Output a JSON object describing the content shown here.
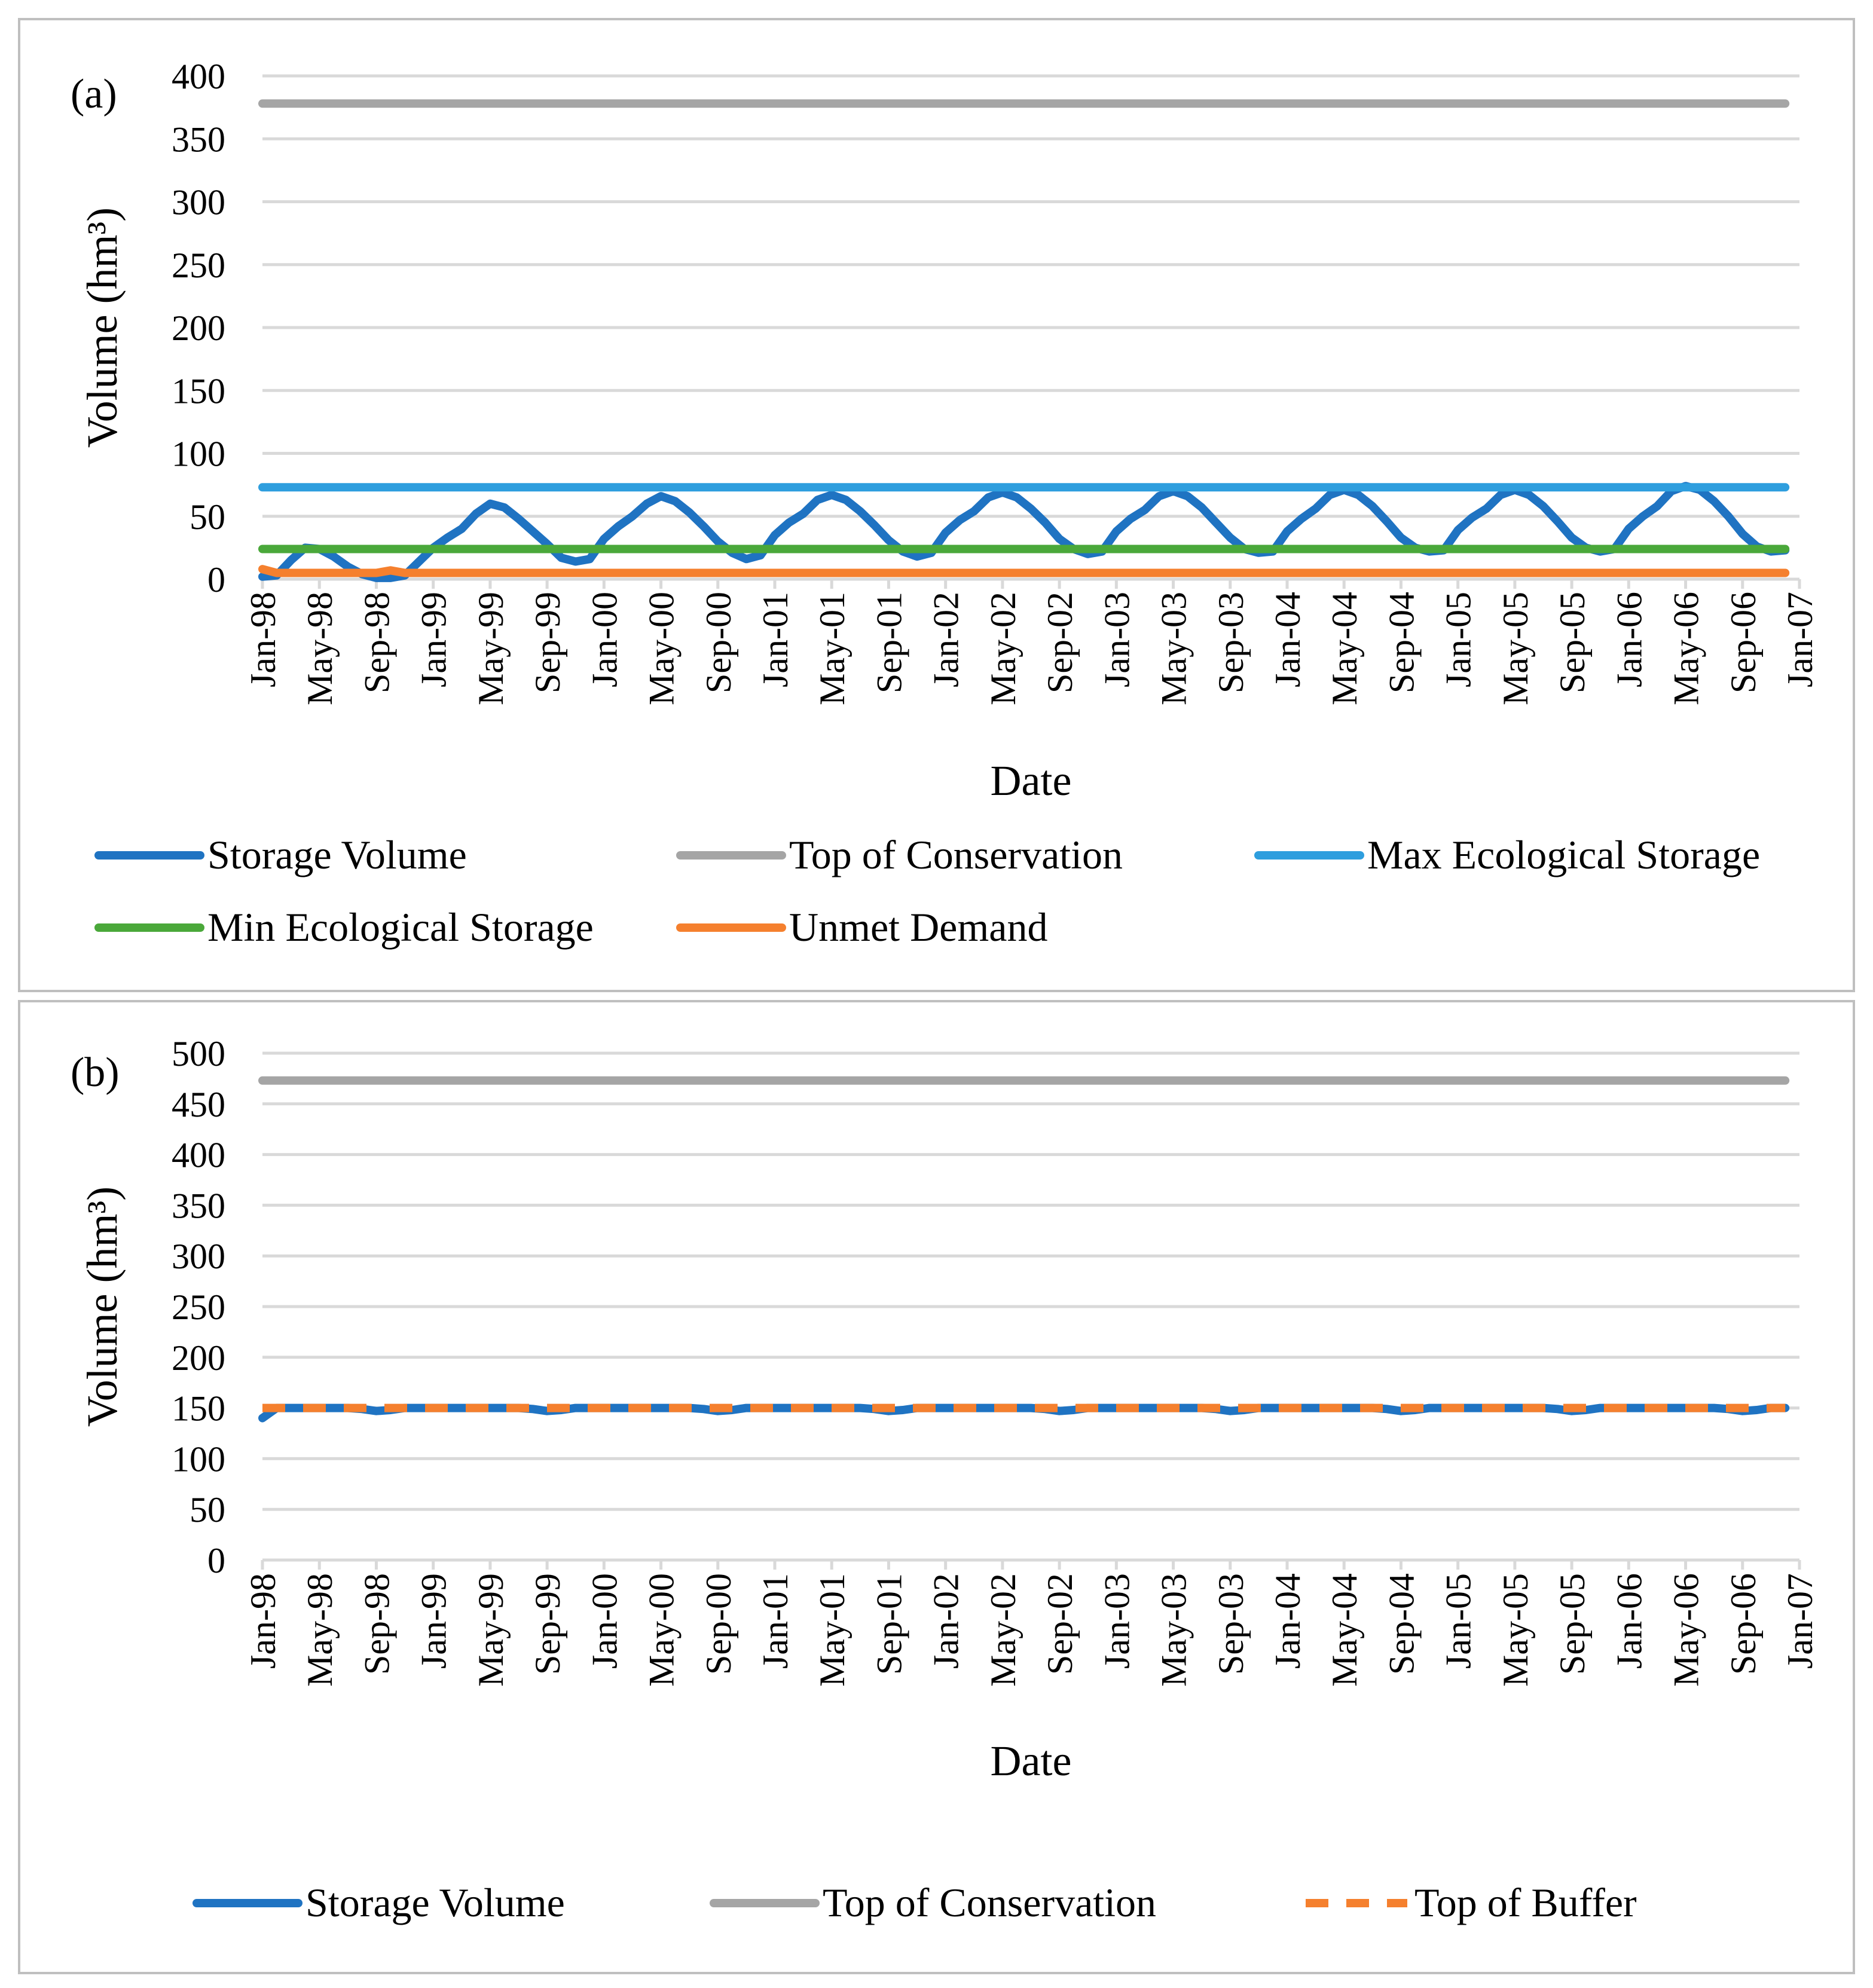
{
  "chart_data": [
    {
      "type": "line",
      "label": "(a)",
      "y_label": "Volume (hm³)",
      "x_label": "Date",
      "grid": true,
      "legend": "bottom",
      "categories": [
        "Jan-98",
        null,
        null,
        null,
        "May-98",
        null,
        null,
        null,
        "Sep-98",
        null,
        null,
        null,
        "Jan-99",
        null,
        null,
        null,
        "May-99",
        null,
        null,
        null,
        "Sep-99",
        null,
        null,
        null,
        "Jan-00",
        null,
        null,
        null,
        "May-00",
        null,
        null,
        null,
        "Sep-00",
        null,
        null,
        null,
        "Jan-01",
        null,
        null,
        null,
        "May-01",
        null,
        null,
        null,
        "Sep-01",
        null,
        null,
        null,
        "Jan-02",
        null,
        null,
        null,
        "May-02",
        null,
        null,
        null,
        "Sep-02",
        null,
        null,
        null,
        "Jan-03",
        null,
        null,
        null,
        "May-03",
        null,
        null,
        null,
        "Sep-03",
        null,
        null,
        null,
        "Jan-04",
        null,
        null,
        null,
        "May-04",
        null,
        null,
        null,
        "Sep-04",
        null,
        null,
        null,
        "Jan-05",
        null,
        null,
        null,
        "May-05",
        null,
        null,
        null,
        "Sep-05",
        null,
        null,
        null,
        "Jan-06",
        null,
        null,
        null,
        "May-06",
        null,
        null,
        null,
        "Sep-06",
        null,
        null,
        null,
        "Jan-07"
      ],
      "ylim": [
        0,
        400
      ],
      "yticks": [
        0,
        50,
        100,
        150,
        200,
        250,
        300,
        350,
        400
      ],
      "series": [
        {
          "name": "Storage Volume",
          "color": "#1f73c2",
          "values": [
            2,
            3,
            15,
            25,
            24,
            18,
            10,
            4,
            1,
            1,
            3,
            14,
            25,
            33,
            40,
            52,
            60,
            57,
            48,
            38,
            28,
            17,
            14,
            16,
            32,
            42,
            50,
            60,
            66,
            62,
            53,
            42,
            30,
            21,
            16,
            19,
            35,
            45,
            52,
            63,
            67,
            63,
            54,
            43,
            31,
            22,
            18,
            21,
            37,
            47,
            54,
            65,
            69,
            65,
            56,
            45,
            32,
            24,
            20,
            22,
            38,
            48,
            55,
            66,
            70,
            66,
            57,
            45,
            33,
            24,
            21,
            22,
            38,
            48,
            56,
            67,
            71,
            67,
            58,
            46,
            33,
            25,
            22,
            23,
            39,
            49,
            56,
            67,
            71,
            67,
            58,
            46,
            33,
            25,
            22,
            24,
            40,
            50,
            58,
            70,
            74,
            71,
            62,
            50,
            36,
            26,
            22,
            23,
            null
          ]
        },
        {
          "name": "Top of Conservation",
          "color": "#a5a5a5",
          "values": [
            378,
            378,
            378,
            378,
            378,
            378,
            378,
            378,
            378,
            378,
            378,
            378,
            378,
            378,
            378,
            378,
            378,
            378,
            378,
            378,
            378,
            378,
            378,
            378,
            378,
            378,
            378,
            378,
            378,
            378,
            378,
            378,
            378,
            378,
            378,
            378,
            378,
            378,
            378,
            378,
            378,
            378,
            378,
            378,
            378,
            378,
            378,
            378,
            378,
            378,
            378,
            378,
            378,
            378,
            378,
            378,
            378,
            378,
            378,
            378,
            378,
            378,
            378,
            378,
            378,
            378,
            378,
            378,
            378,
            378,
            378,
            378,
            378,
            378,
            378,
            378,
            378,
            378,
            378,
            378,
            378,
            378,
            378,
            378,
            378,
            378,
            378,
            378,
            378,
            378,
            378,
            378,
            378,
            378,
            378,
            378,
            378,
            378,
            378,
            378,
            378,
            378,
            378,
            378,
            378,
            378,
            378,
            378,
            null
          ]
        },
        {
          "name": "Max Ecological Storage",
          "color": "#2e9ede",
          "values": [
            73,
            73,
            73,
            73,
            73,
            73,
            73,
            73,
            73,
            73,
            73,
            73,
            73,
            73,
            73,
            73,
            73,
            73,
            73,
            73,
            73,
            73,
            73,
            73,
            73,
            73,
            73,
            73,
            73,
            73,
            73,
            73,
            73,
            73,
            73,
            73,
            73,
            73,
            73,
            73,
            73,
            73,
            73,
            73,
            73,
            73,
            73,
            73,
            73,
            73,
            73,
            73,
            73,
            73,
            73,
            73,
            73,
            73,
            73,
            73,
            73,
            73,
            73,
            73,
            73,
            73,
            73,
            73,
            73,
            73,
            73,
            73,
            73,
            73,
            73,
            73,
            73,
            73,
            73,
            73,
            73,
            73,
            73,
            73,
            73,
            73,
            73,
            73,
            73,
            73,
            73,
            73,
            73,
            73,
            73,
            73,
            73,
            73,
            73,
            73,
            73,
            73,
            73,
            73,
            73,
            73,
            73,
            73,
            null
          ]
        },
        {
          "name": "Min Ecological Storage",
          "color": "#4aa83a",
          "values": [
            24,
            24,
            24,
            24,
            24,
            24,
            24,
            24,
            24,
            24,
            24,
            24,
            24,
            24,
            24,
            24,
            24,
            24,
            24,
            24,
            24,
            24,
            24,
            24,
            24,
            24,
            24,
            24,
            24,
            24,
            24,
            24,
            24,
            24,
            24,
            24,
            24,
            24,
            24,
            24,
            24,
            24,
            24,
            24,
            24,
            24,
            24,
            24,
            24,
            24,
            24,
            24,
            24,
            24,
            24,
            24,
            24,
            24,
            24,
            24,
            24,
            24,
            24,
            24,
            24,
            24,
            24,
            24,
            24,
            24,
            24,
            24,
            24,
            24,
            24,
            24,
            24,
            24,
            24,
            24,
            24,
            24,
            24,
            24,
            24,
            24,
            24,
            24,
            24,
            24,
            24,
            24,
            24,
            24,
            24,
            24,
            24,
            24,
            24,
            24,
            24,
            24,
            24,
            24,
            24,
            24,
            24,
            24,
            null
          ]
        },
        {
          "name": "Unmet Demand",
          "color": "#f5802e",
          "values": [
            8,
            5,
            5,
            5,
            5,
            5,
            5,
            5,
            5,
            7,
            5,
            5,
            5,
            5,
            5,
            5,
            5,
            5,
            5,
            5,
            5,
            5,
            5,
            5,
            5,
            5,
            5,
            5,
            5,
            5,
            5,
            5,
            5,
            5,
            5,
            5,
            5,
            5,
            5,
            5,
            5,
            5,
            5,
            5,
            5,
            5,
            5,
            5,
            5,
            5,
            5,
            5,
            5,
            5,
            5,
            5,
            5,
            5,
            5,
            5,
            5,
            5,
            5,
            5,
            5,
            5,
            5,
            5,
            5,
            5,
            5,
            5,
            5,
            5,
            5,
            5,
            5,
            5,
            5,
            5,
            5,
            5,
            5,
            5,
            5,
            5,
            5,
            5,
            5,
            5,
            5,
            5,
            5,
            5,
            5,
            5,
            5,
            5,
            5,
            5,
            5,
            5,
            5,
            5,
            5,
            5,
            5,
            5,
            null
          ]
        }
      ]
    },
    {
      "type": "line",
      "label": "(b)",
      "y_label": "Volume (hm³)",
      "x_label": "Date",
      "grid": true,
      "legend": "bottom",
      "categories": [
        "Jan-98",
        null,
        null,
        null,
        "May-98",
        null,
        null,
        null,
        "Sep-98",
        null,
        null,
        null,
        "Jan-99",
        null,
        null,
        null,
        "May-99",
        null,
        null,
        null,
        "Sep-99",
        null,
        null,
        null,
        "Jan-00",
        null,
        null,
        null,
        "May-00",
        null,
        null,
        null,
        "Sep-00",
        null,
        null,
        null,
        "Jan-01",
        null,
        null,
        null,
        "May-01",
        null,
        null,
        null,
        "Sep-01",
        null,
        null,
        null,
        "Jan-02",
        null,
        null,
        null,
        "May-02",
        null,
        null,
        null,
        "Sep-02",
        null,
        null,
        null,
        "Jan-03",
        null,
        null,
        null,
        "May-03",
        null,
        null,
        null,
        "Sep-03",
        null,
        null,
        null,
        "Jan-04",
        null,
        null,
        null,
        "May-04",
        null,
        null,
        null,
        "Sep-04",
        null,
        null,
        null,
        "Jan-05",
        null,
        null,
        null,
        "May-05",
        null,
        null,
        null,
        "Sep-05",
        null,
        null,
        null,
        "Jan-06",
        null,
        null,
        null,
        "May-06",
        null,
        null,
        null,
        "Sep-06",
        null,
        null,
        null,
        "Jan-07"
      ],
      "ylim": [
        0,
        500
      ],
      "yticks": [
        0,
        50,
        100,
        150,
        200,
        250,
        300,
        350,
        400,
        450,
        500
      ],
      "series": [
        {
          "name": "Storage Volume",
          "color": "#1f73c2",
          "values": [
            140,
            150,
            150,
            150,
            150,
            150,
            150,
            149,
            147,
            148,
            150,
            150,
            150,
            150,
            150,
            150,
            150,
            150,
            150,
            149,
            147,
            148,
            150,
            150,
            150,
            150,
            150,
            150,
            150,
            150,
            150,
            149,
            147,
            148,
            150,
            150,
            150,
            150,
            150,
            150,
            150,
            150,
            150,
            149,
            147,
            148,
            150,
            150,
            150,
            150,
            150,
            150,
            150,
            150,
            150,
            149,
            147,
            148,
            150,
            150,
            150,
            150,
            150,
            150,
            150,
            150,
            150,
            149,
            147,
            148,
            150,
            150,
            150,
            150,
            150,
            150,
            150,
            150,
            150,
            149,
            147,
            148,
            150,
            150,
            150,
            150,
            150,
            150,
            150,
            150,
            150,
            149,
            147,
            148,
            150,
            150,
            150,
            150,
            150,
            150,
            150,
            150,
            150,
            149,
            147,
            148,
            150,
            150,
            null
          ]
        },
        {
          "name": "Top of Conservation",
          "color": "#a5a5a5",
          "values": [
            473,
            473,
            473,
            473,
            473,
            473,
            473,
            473,
            473,
            473,
            473,
            473,
            473,
            473,
            473,
            473,
            473,
            473,
            473,
            473,
            473,
            473,
            473,
            473,
            473,
            473,
            473,
            473,
            473,
            473,
            473,
            473,
            473,
            473,
            473,
            473,
            473,
            473,
            473,
            473,
            473,
            473,
            473,
            473,
            473,
            473,
            473,
            473,
            473,
            473,
            473,
            473,
            473,
            473,
            473,
            473,
            473,
            473,
            473,
            473,
            473,
            473,
            473,
            473,
            473,
            473,
            473,
            473,
            473,
            473,
            473,
            473,
            473,
            473,
            473,
            473,
            473,
            473,
            473,
            473,
            473,
            473,
            473,
            473,
            473,
            473,
            473,
            473,
            473,
            473,
            473,
            473,
            473,
            473,
            473,
            473,
            473,
            473,
            473,
            473,
            473,
            473,
            473,
            473,
            473,
            473,
            473,
            473,
            null
          ]
        },
        {
          "name": "Top of Buffer",
          "color": "#f5802e",
          "dashed": true,
          "values": [
            150,
            150,
            150,
            150,
            150,
            150,
            150,
            150,
            150,
            150,
            150,
            150,
            150,
            150,
            150,
            150,
            150,
            150,
            150,
            150,
            150,
            150,
            150,
            150,
            150,
            150,
            150,
            150,
            150,
            150,
            150,
            150,
            150,
            150,
            150,
            150,
            150,
            150,
            150,
            150,
            150,
            150,
            150,
            150,
            150,
            150,
            150,
            150,
            150,
            150,
            150,
            150,
            150,
            150,
            150,
            150,
            150,
            150,
            150,
            150,
            150,
            150,
            150,
            150,
            150,
            150,
            150,
            150,
            150,
            150,
            150,
            150,
            150,
            150,
            150,
            150,
            150,
            150,
            150,
            150,
            150,
            150,
            150,
            150,
            150,
            150,
            150,
            150,
            150,
            150,
            150,
            150,
            150,
            150,
            150,
            150,
            150,
            150,
            150,
            150,
            150,
            150,
            150,
            150,
            150,
            150,
            150,
            150,
            null
          ]
        }
      ]
    }
  ]
}
